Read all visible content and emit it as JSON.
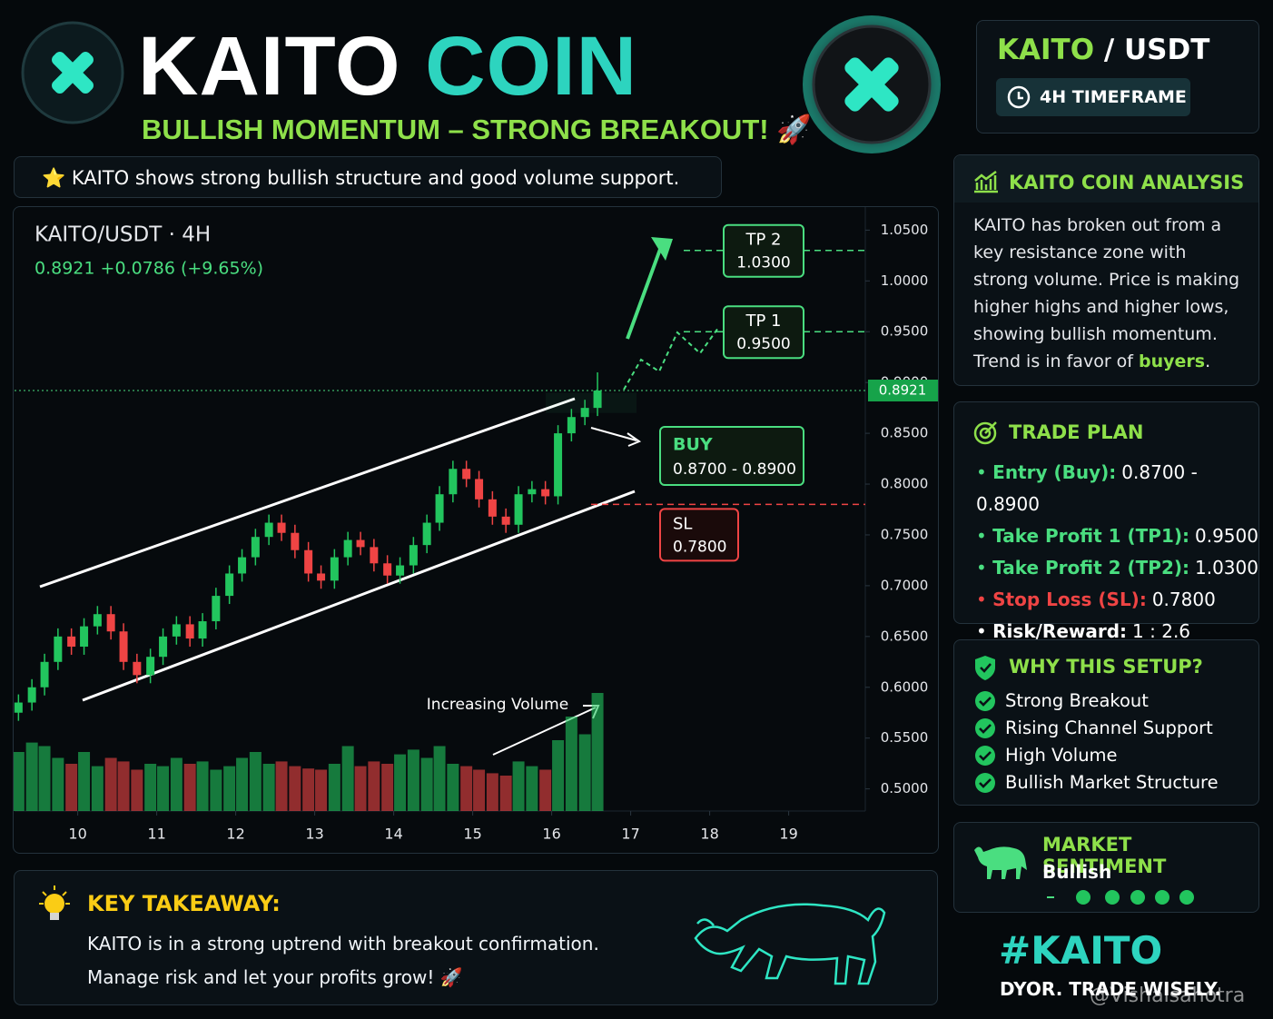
{
  "header": {
    "title": "KAITO",
    "title_accent": "COIN",
    "tagline": "BULLISH MOMENTUM – STRONG BREAKOUT! 🚀"
  },
  "note": "⭐ KAITO shows strong bullish structure and good volume support.",
  "pair": {
    "base": "KAITO",
    "quote": "/ USDT",
    "timeframe": "4H TIMEFRAME"
  },
  "chart_data": {
    "type": "candlestick",
    "title": "KAITO/USDT · 4H",
    "subtitle": "0.8921  +0.0786 (+9.65%)",
    "x": [
      9.25,
      9.42,
      9.58,
      9.75,
      9.92,
      10.08,
      10.25,
      10.42,
      10.58,
      10.75,
      10.92,
      11.08,
      11.25,
      11.42,
      11.58,
      11.75,
      11.92,
      12.08,
      12.25,
      12.42,
      12.58,
      12.75,
      12.92,
      13.08,
      13.25,
      13.42,
      13.58,
      13.75,
      13.92,
      14.08,
      14.25,
      14.42,
      14.58,
      14.75,
      14.92,
      15.08,
      15.25,
      15.42,
      15.58,
      15.75,
      15.92,
      16.08,
      16.25,
      16.42,
      16.58
    ],
    "open": [
      0.575,
      0.585,
      0.6,
      0.625,
      0.65,
      0.64,
      0.66,
      0.672,
      0.655,
      0.625,
      0.612,
      0.63,
      0.65,
      0.662,
      0.648,
      0.665,
      0.69,
      0.712,
      0.728,
      0.748,
      0.762,
      0.752,
      0.735,
      0.712,
      0.705,
      0.728,
      0.745,
      0.738,
      0.722,
      0.71,
      0.72,
      0.74,
      0.762,
      0.79,
      0.815,
      0.805,
      0.785,
      0.768,
      0.76,
      0.79,
      0.795,
      0.788,
      0.85,
      0.866,
      0.875
    ],
    "high": [
      0.593,
      0.608,
      0.633,
      0.658,
      0.658,
      0.668,
      0.68,
      0.68,
      0.663,
      0.633,
      0.638,
      0.658,
      0.67,
      0.67,
      0.673,
      0.698,
      0.72,
      0.736,
      0.756,
      0.77,
      0.77,
      0.76,
      0.743,
      0.72,
      0.736,
      0.753,
      0.753,
      0.746,
      0.73,
      0.728,
      0.748,
      0.77,
      0.798,
      0.823,
      0.823,
      0.813,
      0.793,
      0.776,
      0.798,
      0.803,
      0.803,
      0.858,
      0.874,
      0.883,
      0.91
    ],
    "low": [
      0.567,
      0.577,
      0.592,
      0.617,
      0.632,
      0.632,
      0.652,
      0.647,
      0.617,
      0.604,
      0.604,
      0.622,
      0.642,
      0.64,
      0.64,
      0.657,
      0.682,
      0.704,
      0.72,
      0.74,
      0.744,
      0.727,
      0.704,
      0.697,
      0.697,
      0.72,
      0.73,
      0.714,
      0.702,
      0.702,
      0.712,
      0.732,
      0.754,
      0.782,
      0.797,
      0.777,
      0.76,
      0.752,
      0.752,
      0.782,
      0.78,
      0.78,
      0.842,
      0.858,
      0.867
    ],
    "close": [
      0.585,
      0.6,
      0.625,
      0.65,
      0.64,
      0.66,
      0.672,
      0.655,
      0.625,
      0.612,
      0.63,
      0.65,
      0.662,
      0.648,
      0.665,
      0.69,
      0.712,
      0.728,
      0.748,
      0.762,
      0.752,
      0.735,
      0.712,
      0.705,
      0.728,
      0.745,
      0.738,
      0.722,
      0.71,
      0.72,
      0.74,
      0.762,
      0.79,
      0.815,
      0.805,
      0.785,
      0.768,
      0.76,
      0.79,
      0.795,
      0.788,
      0.85,
      0.866,
      0.875,
      0.8921
    ],
    "volume": [
      50,
      58,
      55,
      45,
      40,
      50,
      38,
      45,
      42,
      35,
      40,
      38,
      45,
      40,
      42,
      35,
      38,
      45,
      50,
      40,
      42,
      38,
      36,
      35,
      40,
      55,
      38,
      42,
      40,
      48,
      52,
      45,
      55,
      40,
      38,
      35,
      32,
      30,
      42,
      38,
      35,
      60,
      80,
      65,
      100
    ],
    "up_color": "#22c55e",
    "down_color": "#ef4444",
    "xlim": [
      9.2,
      19.97
    ],
    "xticks": [
      10,
      11,
      12,
      13,
      14,
      15,
      16,
      17,
      18,
      19
    ],
    "ylim": [
      0.48,
      1.07
    ],
    "yticks": [
      {
        "value": 0.5,
        "label": "0.5000"
      },
      {
        "value": 0.55,
        "label": "0.5500"
      },
      {
        "value": 0.6,
        "label": "0.6000"
      },
      {
        "value": 0.65,
        "label": "0.6500"
      },
      {
        "value": 0.7,
        "label": "0.7000"
      },
      {
        "value": 0.75,
        "label": "0.7500"
      },
      {
        "value": 0.8,
        "label": "0.8000"
      },
      {
        "value": 0.85,
        "label": "0.8500"
      },
      {
        "value": 0.9,
        "label": "0.9000"
      },
      {
        "value": 0.95,
        "label": "0.9500"
      },
      {
        "value": 1.0,
        "label": "1.0000"
      },
      {
        "value": 1.05,
        "label": "1.0500"
      }
    ],
    "vlim": [
      0,
      100
    ],
    "levels": [
      {
        "name": "TP 2",
        "value": 1.03,
        "value_label": "1.0300",
        "color": "#4ade80"
      },
      {
        "name": "TP 1",
        "value": 0.95,
        "value_label": "0.9500",
        "color": "#4ade80"
      },
      {
        "name": "SL",
        "value": 0.78,
        "value_label": "0.7800",
        "color": "#ef4444"
      }
    ],
    "buy_zone": {
      "name": "BUY",
      "low": 0.87,
      "high": 0.89,
      "label": "0.8700 - 0.8900"
    },
    "last_price": {
      "value": 0.8921,
      "label": "0.8921"
    },
    "annotation": "Increasing Volume"
  },
  "analysis": {
    "title": "KAITO COIN ANALYSIS",
    "text": "KAITO has broken out from a key resistance zone with strong volume. Price is making higher highs and higher lows, showing bullish momentum. Trend is in favor of ",
    "highlight": "buyers",
    "end": "."
  },
  "trade_plan": {
    "title": "TRADE PLAN",
    "items": [
      {
        "label": "Entry (Buy):",
        "value": "0.8700 - 0.8900",
        "color": "#4ade80"
      },
      {
        "label": "Take Profit 1 (TP1):",
        "value": "0.9500",
        "color": "#4ade80"
      },
      {
        "label": "Take Profit 2 (TP2):",
        "value": "1.0300",
        "color": "#4ade80"
      },
      {
        "label": "Stop Loss (SL):",
        "value": "0.7800",
        "color": "#ef4444"
      },
      {
        "label": "Risk/Reward:",
        "value": "1 : 2.6",
        "color": "#ffffff"
      }
    ]
  },
  "why_setup": {
    "title": "WHY THIS SETUP?",
    "items": [
      "Strong Breakout",
      "Rising Channel Support",
      "High Volume",
      "Bullish Market Structure"
    ]
  },
  "sentiment": {
    "title": "MARKET SENTIMENT",
    "value": "Bullish"
  },
  "takeaway": {
    "title": "KEY TAKEAWAY:",
    "lines": [
      "KAITO is in a strong uptrend with breakout confirmation.",
      "Manage risk and let your profits grow! 🚀"
    ]
  },
  "footer": {
    "hashtag": "#KAITO",
    "disclaimer": "DYOR. TRADE WISELY.",
    "watermark": "@Vishalsahotra"
  }
}
